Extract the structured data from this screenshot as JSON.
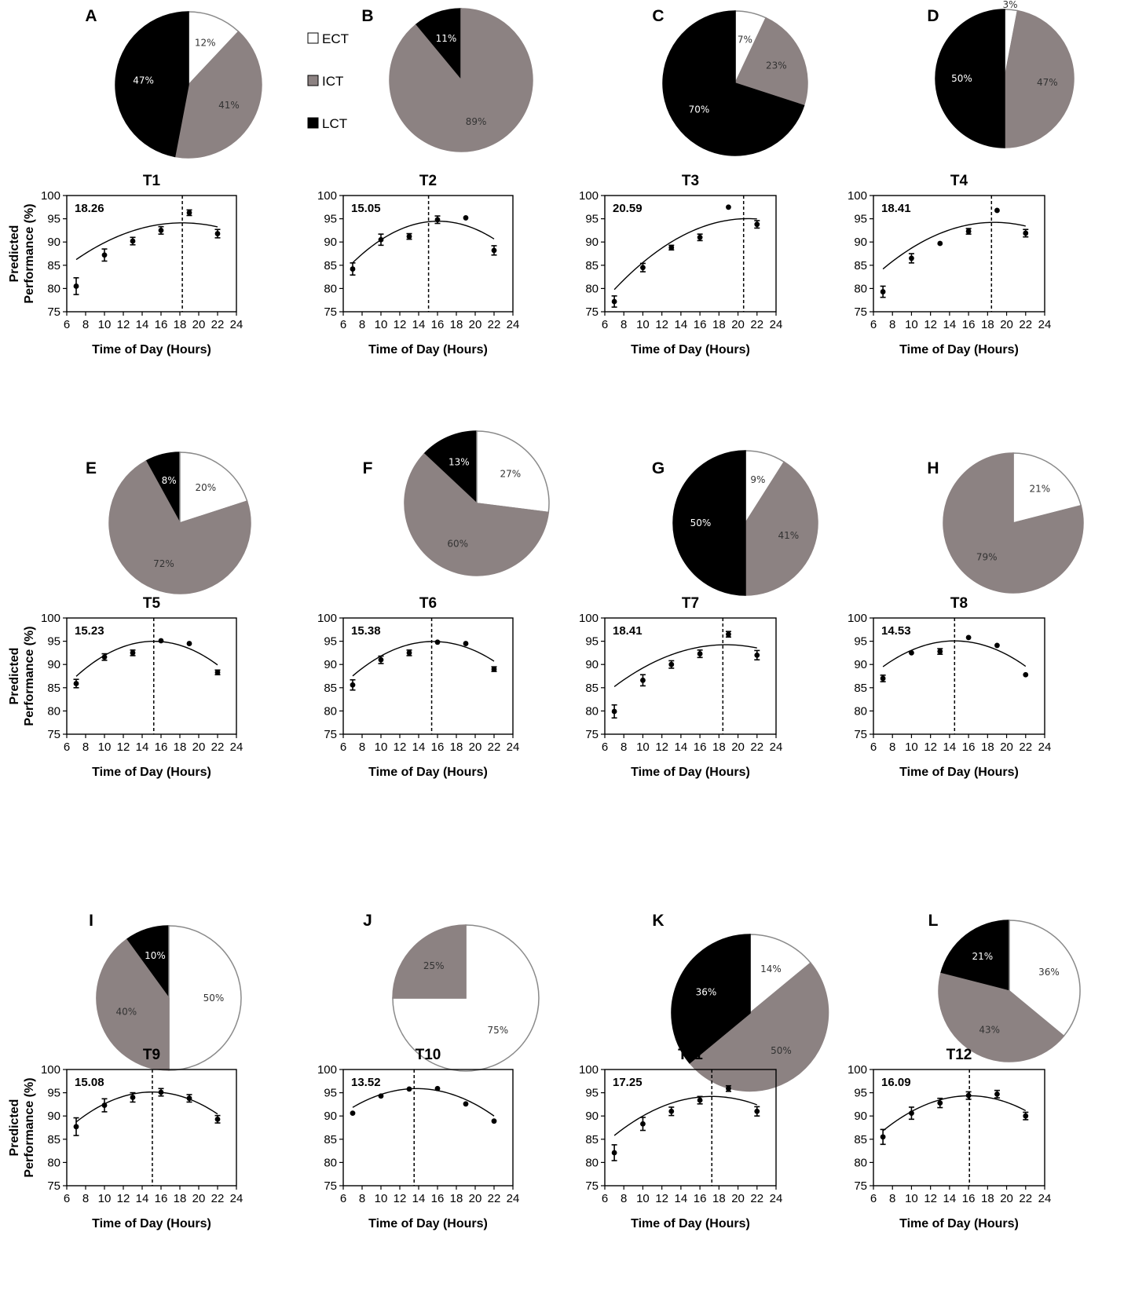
{
  "legend": [
    {
      "label": "ECT",
      "color": "#ffffff"
    },
    {
      "label": "ICT",
      "color": "#8c8282"
    },
    {
      "label": "LCT",
      "color": "#000000"
    }
  ],
  "colors": {
    "ECT": "#ffffff",
    "ICT": "#8c8282",
    "LCT": "#000000"
  },
  "axis_labels": {
    "xlabel": "Time of Day (Hours)",
    "ylabel_line1": "Predicted",
    "ylabel_line2": "Performance (%)"
  },
  "chart_data": [
    {
      "type": "pie",
      "panel": "A",
      "slices": [
        {
          "category": "ECT",
          "label": "12%",
          "value": 12
        },
        {
          "category": "ICT",
          "label": "41%",
          "value": 41
        },
        {
          "category": "LCT",
          "label": "47%",
          "value": 47
        }
      ]
    },
    {
      "type": "pie",
      "panel": "B",
      "slices": [
        {
          "category": "ICT",
          "label": "89%",
          "value": 89
        },
        {
          "category": "LCT",
          "label": "11%",
          "value": 11
        }
      ]
    },
    {
      "type": "pie",
      "panel": "C",
      "slices": [
        {
          "category": "ECT",
          "label": "7%",
          "value": 7
        },
        {
          "category": "ICT",
          "label": "23%",
          "value": 23
        },
        {
          "category": "LCT",
          "label": "70%",
          "value": 70
        }
      ]
    },
    {
      "type": "pie",
      "panel": "D",
      "slices": [
        {
          "category": "ECT",
          "label": "3%",
          "value": 3
        },
        {
          "category": "ICT",
          "label": "47%",
          "value": 47
        },
        {
          "category": "LCT",
          "label": "50%",
          "value": 50
        }
      ]
    },
    {
      "type": "pie",
      "panel": "E",
      "slices": [
        {
          "category": "ECT",
          "label": "20%",
          "value": 20
        },
        {
          "category": "ICT",
          "label": "72%",
          "value": 72
        },
        {
          "category": "LCT",
          "label": "8%",
          "value": 8
        }
      ]
    },
    {
      "type": "pie",
      "panel": "F",
      "slices": [
        {
          "category": "ECT",
          "label": "27%",
          "value": 27
        },
        {
          "category": "ICT",
          "label": "60%",
          "value": 60
        },
        {
          "category": "LCT",
          "label": "13%",
          "value": 13
        }
      ]
    },
    {
      "type": "pie",
      "panel": "G",
      "slices": [
        {
          "category": "ECT",
          "label": "9%",
          "value": 9
        },
        {
          "category": "ICT",
          "label": "41%",
          "value": 41
        },
        {
          "category": "LCT",
          "label": "50%",
          "value": 50
        }
      ]
    },
    {
      "type": "pie",
      "panel": "H",
      "slices": [
        {
          "category": "ECT",
          "label": "21%",
          "value": 21
        },
        {
          "category": "ICT",
          "label": "79%",
          "value": 79
        }
      ]
    },
    {
      "type": "pie",
      "panel": "I",
      "slices": [
        {
          "category": "ECT",
          "label": "50%",
          "value": 50
        },
        {
          "category": "ICT",
          "label": "40%",
          "value": 40
        },
        {
          "category": "LCT",
          "label": "10%",
          "value": 10
        }
      ]
    },
    {
      "type": "pie",
      "panel": "J",
      "slices": [
        {
          "category": "ECT",
          "label": "75%",
          "value": 75
        },
        {
          "category": "ICT",
          "label": "25%",
          "value": 25
        }
      ]
    },
    {
      "type": "pie",
      "panel": "K",
      "slices": [
        {
          "category": "ECT",
          "label": "14%",
          "value": 14
        },
        {
          "category": "ICT",
          "label": "50%",
          "value": 50
        },
        {
          "category": "LCT",
          "label": "36%",
          "value": 36
        }
      ]
    },
    {
      "type": "pie",
      "panel": "L",
      "slices": [
        {
          "category": "ECT",
          "label": "36%",
          "value": 36
        },
        {
          "category": "ICT",
          "label": "43%",
          "value": 43
        },
        {
          "category": "LCT",
          "label": "21%",
          "value": 21
        }
      ]
    },
    {
      "type": "scatter",
      "title": "T1",
      "peak_label": "18.26",
      "peak": 18.26,
      "xlabel": "Time of Day (Hours)",
      "ylabel": "Predicted Performance (%)",
      "xlim": [
        6,
        24
      ],
      "ylim": [
        75,
        100
      ],
      "xticks": [
        "6",
        "8",
        "10",
        "12",
        "14",
        "16",
        "18",
        "20",
        "22",
        "24"
      ],
      "yticks": [
        "75",
        "80",
        "85",
        "90",
        "95",
        "100"
      ],
      "x": [
        7,
        10,
        13,
        16,
        19,
        22
      ],
      "y": [
        80.5,
        87.2,
        90.2,
        92.5,
        96.3,
        91.8
      ],
      "err": [
        1.8,
        1.3,
        0.8,
        0.8,
        0.6,
        0.9
      ],
      "fit": {
        "a": -0.0623,
        "b": 2.275,
        "c": 73.35
      }
    },
    {
      "type": "scatter",
      "title": "T2",
      "peak_label": "15.05",
      "peak": 15.05,
      "xlabel": "Time of Day (Hours)",
      "ylabel": "Predicted Performance (%)",
      "xlim": [
        6,
        24
      ],
      "ylim": [
        75,
        100
      ],
      "xticks": [
        "6",
        "8",
        "10",
        "12",
        "14",
        "16",
        "18",
        "20",
        "22",
        "24"
      ],
      "yticks": [
        "75",
        "80",
        "85",
        "90",
        "95",
        "100"
      ],
      "x": [
        7,
        10,
        13,
        16,
        19,
        22
      ],
      "y": [
        84.2,
        90.5,
        91.2,
        94.8,
        95.2,
        88.2
      ],
      "err": [
        1.3,
        1.2,
        0.6,
        0.8,
        0,
        1.0
      ],
      "fit": {
        "a": -0.1087,
        "b": 3.494,
        "c": 66.4
      }
    },
    {
      "type": "scatter",
      "title": "T3",
      "peak_label": "20.59",
      "peak": 20.59,
      "xlabel": "Time of Day (Hours)",
      "ylabel": "Predicted Performance (%)",
      "xlim": [
        6,
        24
      ],
      "ylim": [
        75,
        100
      ],
      "xticks": [
        "6",
        "8",
        "10",
        "12",
        "14",
        "16",
        "18",
        "20",
        "22",
        "24"
      ],
      "yticks": [
        "75",
        "80",
        "85",
        "90",
        "95",
        "100"
      ],
      "x": [
        7,
        10,
        13,
        16,
        19,
        22
      ],
      "y": [
        77.2,
        84.5,
        88.8,
        91.0,
        97.5,
        93.8
      ],
      "err": [
        1.2,
        0.9,
        0.5,
        0.7,
        0,
        0.8
      ],
      "fit": {
        "a": -0.0772,
        "b": 3.251,
        "c": 60.8
      }
    },
    {
      "type": "scatter",
      "title": "T4",
      "peak_label": "18.41",
      "peak": 18.41,
      "xlabel": "Time of Day (Hours)",
      "ylabel": "Predicted Performance (%)",
      "xlim": [
        6,
        24
      ],
      "ylim": [
        75,
        100
      ],
      "xticks": [
        "6",
        "8",
        "10",
        "12",
        "14",
        "16",
        "18",
        "20",
        "22",
        "24"
      ],
      "yticks": [
        "75",
        "80",
        "85",
        "90",
        "95",
        "100"
      ],
      "x": [
        7,
        10,
        13,
        16,
        19,
        22
      ],
      "y": [
        79.3,
        86.5,
        89.7,
        92.3,
        96.8,
        91.9
      ],
      "err": [
        1.2,
        1.0,
        0,
        0.6,
        0,
        0.8
      ],
      "fit": {
        "a": -0.0733,
        "b": 2.741,
        "c": 68.6
      }
    },
    {
      "type": "scatter",
      "title": "T5",
      "peak_label": "15.23",
      "peak": 15.23,
      "xlabel": "Time of Day (Hours)",
      "ylabel": "Predicted Performance (%)",
      "xlim": [
        6,
        24
      ],
      "ylim": [
        75,
        100
      ],
      "xticks": [
        "6",
        "8",
        "10",
        "12",
        "14",
        "16",
        "18",
        "20",
        "22",
        "24"
      ],
      "yticks": [
        "75",
        "80",
        "85",
        "90",
        "95",
        "100"
      ],
      "x": [
        7,
        10,
        13,
        16,
        19,
        22
      ],
      "y": [
        85.9,
        91.6,
        92.5,
        95.1,
        94.5,
        88.3
      ],
      "err": [
        0.9,
        0.7,
        0.6,
        0,
        0,
        0.5
      ],
      "fit": {
        "a": -0.1111,
        "b": 3.385,
        "c": 69.2
      }
    },
    {
      "type": "scatter",
      "title": "T6",
      "peak_label": "15.38",
      "peak": 15.38,
      "xlabel": "Time of Day (Hours)",
      "ylabel": "Predicted Performance (%)",
      "xlim": [
        6,
        24
      ],
      "ylim": [
        75,
        100
      ],
      "xticks": [
        "6",
        "8",
        "10",
        "12",
        "14",
        "16",
        "18",
        "20",
        "22",
        "24"
      ],
      "yticks": [
        "75",
        "80",
        "85",
        "90",
        "95",
        "100"
      ],
      "x": [
        7,
        10,
        13,
        16,
        19,
        22
      ],
      "y": [
        85.6,
        91.0,
        92.5,
        94.8,
        94.5,
        89.0
      ],
      "err": [
        1.1,
        0.8,
        0.6,
        0,
        0,
        0.5
      ],
      "fit": {
        "a": -0.1016,
        "b": 3.158,
        "c": 70.4
      }
    },
    {
      "type": "scatter",
      "title": "T7",
      "peak_label": "18.41",
      "peak": 18.41,
      "xlabel": "Time of Day (Hours)",
      "ylabel": "Predicted Performance (%)",
      "xlim": [
        6,
        24
      ],
      "ylim": [
        75,
        100
      ],
      "xticks": [
        "6",
        "8",
        "10",
        "12",
        "14",
        "16",
        "18",
        "20",
        "22",
        "24"
      ],
      "yticks": [
        "75",
        "80",
        "85",
        "90",
        "95",
        "100"
      ],
      "x": [
        7,
        10,
        13,
        16,
        19,
        22
      ],
      "y": [
        79.9,
        86.6,
        90.0,
        92.3,
        96.5,
        92.0
      ],
      "err": [
        1.4,
        1.2,
        0.8,
        0.8,
        0.6,
        1.0
      ],
      "fit": {
        "a": -0.0653,
        "b": 2.448,
        "c": 71.3
      }
    },
    {
      "type": "scatter",
      "title": "T8",
      "peak_label": "14.53",
      "peak": 14.53,
      "xlabel": "Time of Day (Hours)",
      "ylabel": "Predicted Performance (%)",
      "xlim": [
        6,
        24
      ],
      "ylim": [
        75,
        100
      ],
      "xticks": [
        "6",
        "8",
        "10",
        "12",
        "14",
        "16",
        "18",
        "20",
        "22",
        "24"
      ],
      "yticks": [
        "75",
        "80",
        "85",
        "90",
        "95",
        "100"
      ],
      "x": [
        7,
        10,
        13,
        16,
        19,
        22
      ],
      "y": [
        87.0,
        92.5,
        92.8,
        95.8,
        94.1,
        87.8
      ],
      "err": [
        0.7,
        0,
        0.6,
        0,
        0,
        0
      ],
      "fit": {
        "a": -0.0979,
        "b": 2.845,
        "c": 74.4
      }
    },
    {
      "type": "scatter",
      "title": "T9",
      "peak_label": "15.08",
      "peak": 15.08,
      "xlabel": "Time of Day (Hours)",
      "ylabel": "Predicted Performance (%)",
      "xlim": [
        6,
        24
      ],
      "ylim": [
        75,
        100
      ],
      "xticks": [
        "6",
        "8",
        "10",
        "12",
        "14",
        "16",
        "18",
        "20",
        "22",
        "24"
      ],
      "yticks": [
        "75",
        "80",
        "85",
        "90",
        "95",
        "100"
      ],
      "x": [
        7,
        10,
        13,
        16,
        19,
        22
      ],
      "y": [
        87.7,
        92.3,
        94.0,
        95.1,
        93.8,
        89.3
      ],
      "err": [
        1.9,
        1.4,
        1.0,
        0.8,
        0.8,
        0.8
      ],
      "fit": {
        "a": -0.0988,
        "b": 2.979,
        "c": 72.7
      }
    },
    {
      "type": "scatter",
      "title": "T10",
      "peak_label": "13.52",
      "peak": 13.52,
      "xlabel": "Time of Day (Hours)",
      "ylabel": "Predicted Performance (%)",
      "xlim": [
        6,
        24
      ],
      "ylim": [
        75,
        100
      ],
      "xticks": [
        "6",
        "8",
        "10",
        "12",
        "14",
        "16",
        "18",
        "20",
        "22",
        "24"
      ],
      "yticks": [
        "75",
        "80",
        "85",
        "90",
        "95",
        "100"
      ],
      "x": [
        7,
        10,
        13,
        16,
        19,
        22
      ],
      "y": [
        90.6,
        94.3,
        95.8,
        95.9,
        92.6,
        88.9
      ],
      "err": [
        0,
        0,
        0,
        0,
        0,
        0
      ],
      "fit": {
        "a": -0.0877,
        "b": 2.42,
        "c": 79.2
      }
    },
    {
      "type": "scatter",
      "title": "T11",
      "peak_label": "17.25",
      "peak": 17.25,
      "xlabel": "Time of Day (Hours)",
      "ylabel": "Predicted Performance (%)",
      "xlim": [
        6,
        24
      ],
      "ylim": [
        75,
        100
      ],
      "xticks": [
        "6",
        "8",
        "10",
        "12",
        "14",
        "16",
        "18",
        "20",
        "22",
        "24"
      ],
      "yticks": [
        "75",
        "80",
        "85",
        "90",
        "95",
        "100"
      ],
      "x": [
        7,
        10,
        13,
        16,
        19,
        22
      ],
      "y": [
        82.1,
        88.3,
        91.0,
        93.4,
        95.9,
        91.0
      ],
      "err": [
        1.7,
        1.4,
        0.9,
        0.8,
        0.6,
        1.0
      ],
      "fit": {
        "a": -0.08,
        "b": 2.76,
        "c": 70.4
      }
    },
    {
      "type": "scatter",
      "title": "T12",
      "peak_label": "16.09",
      "peak": 16.09,
      "xlabel": "Time of Day (Hours)",
      "ylabel": "Predicted Performance (%)",
      "xlim": [
        6,
        24
      ],
      "ylim": [
        75,
        100
      ],
      "xticks": [
        "6",
        "8",
        "10",
        "12",
        "14",
        "16",
        "18",
        "20",
        "22",
        "24"
      ],
      "yticks": [
        "75",
        "80",
        "85",
        "90",
        "95",
        "100"
      ],
      "x": [
        7,
        10,
        13,
        16,
        19,
        22
      ],
      "y": [
        85.5,
        90.6,
        92.8,
        94.4,
        94.7,
        90.0
      ],
      "err": [
        1.6,
        1.3,
        1.0,
        0.8,
        0.8,
        0.8
      ],
      "fit": {
        "a": -0.0914,
        "b": 2.94,
        "c": 70.7
      }
    }
  ]
}
